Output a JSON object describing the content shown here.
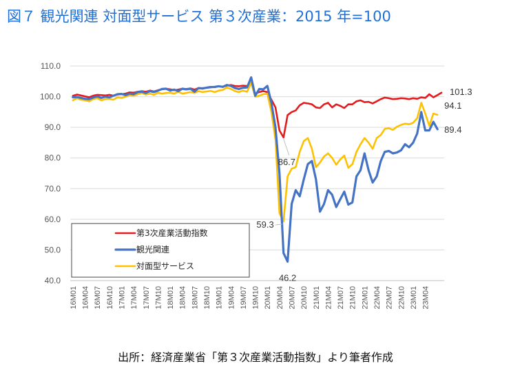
{
  "figure": {
    "title": "図７ 観光関連 対面型サービス 第３次産業：2015 年=100",
    "source": "出所：経済産業省「第３次産業活動指数」より筆者作成"
  },
  "chart_data": {
    "type": "line",
    "title": "",
    "xlabel": "",
    "ylabel": "",
    "ylim": [
      40,
      110
    ],
    "yticks": [
      "40.0",
      "50.0",
      "60.0",
      "70.0",
      "80.0",
      "90.0",
      "100.0",
      "110.0"
    ],
    "grid": "horizontal",
    "legend": "bottom-left",
    "x_tick_labels": [
      "16M01",
      "16M04",
      "16M07",
      "16M10",
      "17M01",
      "17M04",
      "17M07",
      "17M10",
      "18M01",
      "18M04",
      "18M07",
      "18M10",
      "19M01",
      "19M04",
      "19M07",
      "19M10",
      "20M01",
      "20M04",
      "20M07",
      "20M10",
      "21M01",
      "21M04",
      "21M07",
      "21M10",
      "22M01",
      "22M04",
      "22M07",
      "22M10",
      "23M01",
      "23M04"
    ],
    "x_start": "2016-01",
    "x_end": "2023-06",
    "series": [
      {
        "name": "第3次産業活動指数",
        "color": "#e41a1c",
        "values": [
          100.3,
          100.7,
          100.4,
          100.1,
          99.8,
          100.3,
          100.6,
          100.5,
          100.4,
          100.6,
          100.3,
          100.7,
          100.8,
          101.0,
          101.4,
          101.3,
          101.6,
          101.8,
          101.6,
          102.0,
          101.7,
          102.1,
          102.4,
          102.6,
          102.4,
          102.1,
          102.3,
          102.6,
          102.5,
          102.7,
          102.3,
          102.8,
          102.6,
          103.0,
          103.2,
          103.1,
          103.4,
          103.2,
          103.6,
          103.8,
          103.5,
          103.4,
          103.6,
          103.5,
          104.5,
          101.0,
          101.5,
          101.8,
          101.5,
          99.0,
          96.5,
          89.0,
          86.7,
          94.0,
          95.0,
          95.5,
          97.2,
          98.0,
          97.8,
          97.5,
          96.5,
          96.3,
          97.5,
          98.0,
          96.5,
          97.5,
          97.0,
          96.3,
          97.5,
          97.5,
          98.5,
          98.8,
          98.2,
          98.3,
          97.8,
          98.5,
          99.2,
          99.7,
          99.5,
          99.2,
          99.3,
          99.5,
          99.4,
          99.2,
          99.5,
          99.3,
          99.8,
          99.6,
          100.8,
          99.8,
          100.5,
          101.3
        ]
      },
      {
        "name": "観光関連",
        "color": "#4472c4",
        "values": [
          99.8,
          99.9,
          99.6,
          99.3,
          99.2,
          99.7,
          100.1,
          99.6,
          100.0,
          99.8,
          100.3,
          100.8,
          100.9,
          100.5,
          101.0,
          100.8,
          101.5,
          101.6,
          101.2,
          101.8,
          101.5,
          102.0,
          102.5,
          102.6,
          102.0,
          102.3,
          101.8,
          102.6,
          102.4,
          102.6,
          101.6,
          102.8,
          102.7,
          102.9,
          103.1,
          103.2,
          103.4,
          103.2,
          103.8,
          103.5,
          102.8,
          102.5,
          102.9,
          103.0,
          106.3,
          100.3,
          102.5,
          102.4,
          103.5,
          98.0,
          90.0,
          75.0,
          49.0,
          46.2,
          65.0,
          69.5,
          67.5,
          73.0,
          78.0,
          79.0,
          73.0,
          62.5,
          65.0,
          69.5,
          68.0,
          64.0,
          66.5,
          69.0,
          64.8,
          65.5,
          74.0,
          76.0,
          81.5,
          76.0,
          72.0,
          74.0,
          79.0,
          82.0,
          82.3,
          81.5,
          81.8,
          82.5,
          84.5,
          83.5,
          85.0,
          88.0,
          95.0,
          89.0,
          89.0,
          91.8,
          89.4
        ]
      },
      {
        "name": "対面型サービス",
        "color": "#ffc000",
        "values": [
          98.8,
          99.5,
          99.0,
          98.8,
          98.5,
          99.2,
          99.5,
          98.8,
          99.2,
          99.3,
          99.0,
          99.8,
          99.6,
          100.0,
          100.5,
          100.3,
          100.8,
          101.2,
          100.7,
          101.0,
          100.6,
          101.3,
          101.0,
          101.2,
          101.3,
          101.0,
          101.6,
          101.0,
          101.2,
          101.5,
          101.2,
          101.8,
          101.5,
          101.7,
          101.9,
          101.5,
          102.0,
          102.2,
          103.0,
          102.5,
          101.8,
          101.5,
          102.0,
          101.6,
          104.5,
          100.0,
          100.3,
          100.8,
          101.0,
          95.0,
          86.0,
          62.0,
          59.3,
          74.0,
          76.5,
          77.0,
          82.0,
          85.5,
          86.5,
          83.0,
          77.0,
          78.5,
          80.5,
          81.5,
          80.0,
          77.8,
          79.5,
          80.8,
          76.8,
          78.0,
          82.0,
          84.5,
          86.5,
          85.0,
          83.0,
          86.5,
          87.5,
          89.5,
          89.7,
          89.2,
          90.2,
          90.8,
          91.2,
          91.0,
          91.5,
          93.0,
          98.0,
          94.5,
          90.5,
          94.5,
          94.1
        ]
      }
    ],
    "annotations": [
      {
        "text": "101.3",
        "series": 0,
        "point": "last"
      },
      {
        "text": "94.1",
        "series": 2,
        "point": "last"
      },
      {
        "text": "89.4",
        "series": 1,
        "point": "last"
      },
      {
        "text": "86.7",
        "series": 0,
        "point": "min"
      },
      {
        "text": "59.3",
        "series": 2,
        "point": "min"
      },
      {
        "text": "46.2",
        "series": 1,
        "point": "min"
      }
    ]
  }
}
